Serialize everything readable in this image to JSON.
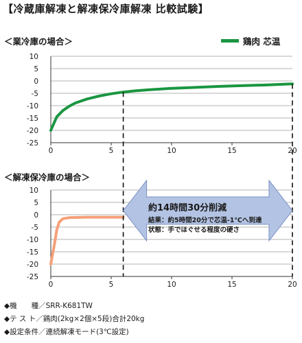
{
  "title": "【冷蔵庫解凍と解凍保冷庫解凍 比較試験】",
  "legend": {
    "label": "鶏肉 芯温"
  },
  "panels": {
    "business_fridge": {
      "label": "＜業冷庫の場合＞"
    },
    "thaw_fridge": {
      "label": "＜解凍保冷庫の場合＞"
    }
  },
  "arrow": {
    "main": "約14時間30分削減",
    "line1": "結果：約5時間20分で芯温-1℃へ到達",
    "line2": "状態：手でほぐせる程度の硬さ"
  },
  "notes": [
    "◆機　　種／SRR-K681TW",
    "◆テ ス ト／鶏肉(2kg×2個×5段)合計20kg",
    "◆設定条件／連続解凍モード(3℃設定)"
  ],
  "colors": {
    "business_line": "#1a9641",
    "thaw_line": "#f5a07a",
    "arrow_fill": "#b3c3e3",
    "arrow_stroke": "#7a8fc4"
  },
  "chart_data": [
    {
      "type": "line",
      "series": [
        {
          "name": "鶏肉 芯温",
          "x": [
            0,
            0.5,
            1,
            1.5,
            2,
            3,
            4,
            5,
            6,
            7,
            8,
            10,
            12,
            14,
            16,
            18,
            20
          ],
          "values": [
            -20,
            -14.5,
            -12,
            -10.3,
            -9,
            -7.3,
            -6.1,
            -5.2,
            -4.5,
            -4,
            -3.6,
            -3,
            -2.6,
            -2.2,
            -1.9,
            -1.6,
            -1.2
          ]
        }
      ],
      "xlim": [
        0,
        20
      ],
      "ylim": [
        -25,
        10
      ],
      "xticks": [
        0,
        5,
        10,
        15,
        20
      ],
      "yticks": [
        10,
        5,
        0,
        -5,
        -10,
        -15,
        -20,
        -25
      ],
      "grid": "horizontal",
      "markers_x": [
        6,
        20
      ]
    },
    {
      "type": "line",
      "series": [
        {
          "x": [
            0,
            0.3,
            0.5,
            0.7,
            1,
            1.5,
            2,
            3,
            4,
            5,
            6
          ],
          "values": [
            -20,
            -12,
            -6,
            -3,
            -1.6,
            -1.2,
            -1.1,
            -1,
            -1,
            -1,
            -1
          ]
        }
      ],
      "xlim": [
        0,
        20
      ],
      "ylim": [
        -25,
        10
      ],
      "xticks": [
        0,
        5,
        10,
        15,
        20
      ],
      "yticks": [
        10,
        5,
        0,
        -5,
        -10,
        -15,
        -20,
        -25
      ],
      "grid": "horizontal",
      "markers_x": [
        6,
        20
      ]
    }
  ]
}
